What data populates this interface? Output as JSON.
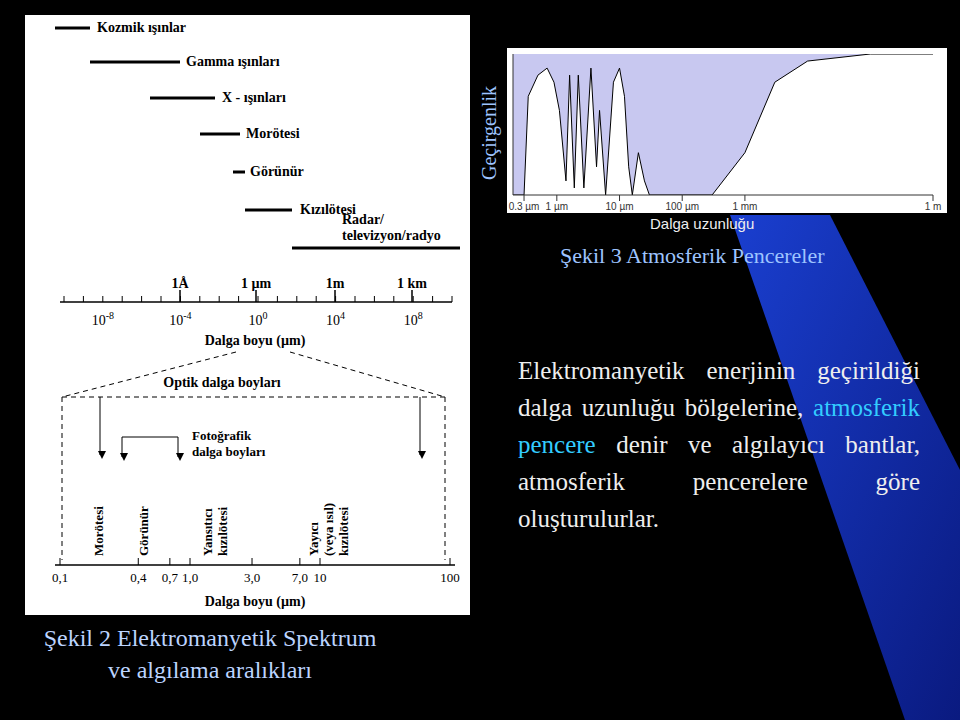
{
  "slide": {
    "paragraph": {
      "before": "Elektromanyetik enerjinin geçirildiği dalga uzunluğu bölgelerine,",
      "highlight": "atmosferik pencere",
      "after": "denir ve algılayıcı bantlar, atmosferik pencerelere göre oluşturulurlar."
    }
  },
  "figure2": {
    "caption": [
      "Şekil 2 Elektromanyetik Spektrum",
      "ve algılama aralıkları"
    ],
    "bands": [
      [
        "Kozmik ışınlar"
      ],
      [
        "Gamma ışınları"
      ],
      [
        "X - ışınları"
      ],
      [
        "Morötesi"
      ],
      [
        "Görünür"
      ],
      [
        "Kızılötesi"
      ],
      [
        "Radar/",
        "televizyon/radyo"
      ]
    ],
    "top_markers": [
      "1Å",
      "1 µm",
      "1m",
      "1 km"
    ],
    "top_ticks": [
      {
        "base": "10",
        "exp": "-8"
      },
      {
        "base": "10",
        "exp": "-4"
      },
      {
        "base": "10",
        "exp": "0"
      },
      {
        "base": "10",
        "exp": "4"
      },
      {
        "base": "10",
        "exp": "8"
      }
    ],
    "axis_label": "Dalga boyu (µm)",
    "optical": "Optik dalga boyları",
    "photographic": [
      "Fotoğrafik",
      "dalga boyları"
    ],
    "regions": [
      [
        "Morötesi"
      ],
      [
        "Görünür"
      ],
      [
        "Yansıtıcı",
        "kızılötesi"
      ],
      [
        "Yayıcı",
        "(veya ısıl)",
        "kızılötesi"
      ]
    ],
    "bottom_ticks": [
      {
        "value": 0.1,
        "label": "0,1"
      },
      {
        "value": 0.4,
        "label": "0,4"
      },
      {
        "value": 0.7,
        "label": "0,7"
      },
      {
        "value": 1,
        "label": "1,0"
      },
      {
        "value": 3,
        "label": "3,0"
      },
      {
        "value": 7,
        "label": "7,0"
      },
      10,
      100
    ],
    "bottom_axis_label": "Dalga boyu (µm)"
  },
  "chart_data": {
    "type": "area",
    "title": "Şekil 3 Atmosferik Pencereler",
    "x_label": "Dalga uzunluğu",
    "y_label": "Geçirgenlik",
    "log": "x",
    "tick_labels": "x",
    "color": "#ffffff",
    "x": [
      0.2,
      0.3,
      0.35,
      0.5,
      0.7,
      0.9,
      1.1,
      1.4,
      1.6,
      1.9,
      2.2,
      2.7,
      3.5,
      4.3,
      4.8,
      6,
      8,
      10,
      12,
      14,
      16,
      20,
      25,
      30,
      100,
      300,
      1000,
      3000,
      10000,
      100000,
      1000000
    ],
    "values": [
      0,
      0,
      70,
      85,
      90,
      80,
      60,
      10,
      85,
      5,
      85,
      5,
      90,
      20,
      60,
      0,
      80,
      90,
      70,
      20,
      0,
      30,
      10,
      0,
      0,
      0,
      30,
      80,
      95,
      100,
      100
    ],
    "xlim": [
      0.2,
      1000000
    ],
    "xticks": [
      {
        "value": 0.3,
        "label": "0.3 µm"
      },
      {
        "value": 1,
        "label": "1 µm"
      },
      {
        "value": 10,
        "label": "10 µm"
      },
      {
        "value": 100,
        "label": "100 µm"
      },
      {
        "value": 1000,
        "label": "1 mm"
      },
      {
        "value": 1000000,
        "label": "1 m"
      }
    ],
    "ylim": [
      0,
      100
    ]
  }
}
